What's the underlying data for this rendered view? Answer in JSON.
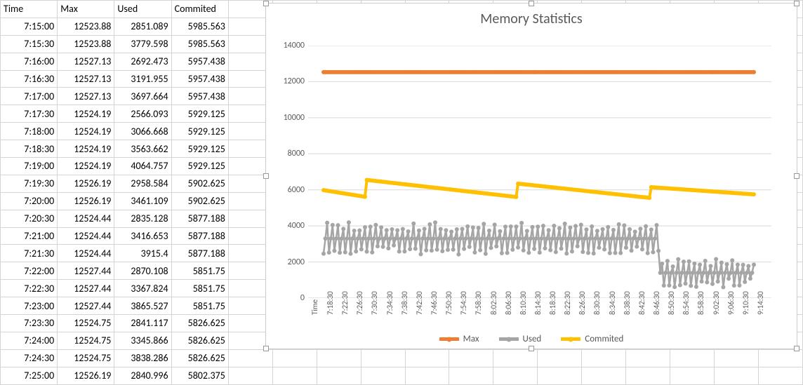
{
  "table": {
    "headers": [
      "Time",
      "Max",
      "Used",
      "Commited"
    ],
    "rows": [
      [
        "7:15:00",
        "12523.88",
        "2851.089",
        "5985.563"
      ],
      [
        "7:15:30",
        "12523.88",
        "3779.598",
        "5985.563"
      ],
      [
        "7:16:00",
        "12527.13",
        "2692.473",
        "5957.438"
      ],
      [
        "7:16:30",
        "12527.13",
        "3191.955",
        "5957.438"
      ],
      [
        "7:17:00",
        "12527.13",
        "3697.664",
        "5957.438"
      ],
      [
        "7:17:30",
        "12524.19",
        "2566.093",
        "5929.125"
      ],
      [
        "7:18:00",
        "12524.19",
        "3066.668",
        "5929.125"
      ],
      [
        "7:18:30",
        "12524.19",
        "3563.662",
        "5929.125"
      ],
      [
        "7:19:00",
        "12524.19",
        "4064.757",
        "5929.125"
      ],
      [
        "7:19:30",
        "12526.19",
        "2958.584",
        "5902.625"
      ],
      [
        "7:20:00",
        "12526.19",
        "3461.109",
        "5902.625"
      ],
      [
        "7:20:30",
        "12524.44",
        "2835.128",
        "5877.188"
      ],
      [
        "7:21:00",
        "12524.44",
        "3416.653",
        "5877.188"
      ],
      [
        "7:21:30",
        "12524.44",
        "3915.4",
        "5877.188"
      ],
      [
        "7:22:00",
        "12527.44",
        "2870.108",
        "5851.75"
      ],
      [
        "7:22:30",
        "12527.44",
        "3367.824",
        "5851.75"
      ],
      [
        "7:23:00",
        "12527.44",
        "3865.527",
        "5851.75"
      ],
      [
        "7:23:30",
        "12524.75",
        "2841.117",
        "5826.625"
      ],
      [
        "7:24:00",
        "12524.75",
        "3345.866",
        "5826.625"
      ],
      [
        "7:24:30",
        "12524.75",
        "3838.286",
        "5826.625"
      ],
      [
        "7:25:00",
        "12526.19",
        "2840.996",
        "5802.375"
      ]
    ]
  },
  "chart": {
    "title": "Memory Statistics",
    "type": "line",
    "background_color": "#ffffff",
    "grid_color": "#d9d9d9",
    "text_color": "#595959",
    "title_fontsize": 20,
    "axis_fontsize": 12,
    "legend_fontsize": 13,
    "ylim": [
      0,
      14000
    ],
    "ytick_step": 2000,
    "yticks": [
      0,
      2000,
      4000,
      6000,
      8000,
      10000,
      12000,
      14000
    ],
    "x_first_label": "Time",
    "xticks": [
      "7:18:30",
      "7:22:30",
      "7:26:30",
      "7:30:30",
      "7:34:30",
      "7:38:30",
      "7:42:30",
      "7:46:30",
      "7:50:30",
      "7:54:30",
      "7:58:30",
      "8:02:30",
      "8:06:30",
      "8:10:30",
      "8:14:30",
      "8:18:30",
      "8:22:30",
      "8:26:30",
      "8:30:30",
      "8:34:30",
      "8:38:30",
      "8:42:30",
      "8:46:30",
      "8:50:30",
      "8:54:30",
      "8:58:30",
      "9:02:30",
      "9:06:30",
      "9:10:30",
      "9:14:30"
    ],
    "n_points": 240,
    "series": {
      "max": {
        "label": "Max",
        "color": "#ed7d31",
        "line_width": 4,
        "marker_size": 3,
        "const_value": 12525
      },
      "used": {
        "label": "Used",
        "color": "#a5a5a5",
        "line_width": 2.5,
        "marker_size": 3,
        "base": 3300,
        "jitter_amp": 900,
        "drop_at_frac": 0.78,
        "drop_to_base": 1400,
        "drop_jitter_amp": 800
      },
      "commited": {
        "label": "Commited",
        "color": "#ffc000",
        "line_width": 4,
        "marker_size": 3,
        "segments": [
          {
            "start_frac": 0.0,
            "start_val": 5985,
            "end_frac": 0.1,
            "end_val": 5600
          },
          {
            "start_frac": 0.1,
            "start_val": 6550,
            "end_frac": 0.45,
            "end_val": 5600
          },
          {
            "start_frac": 0.45,
            "start_val": 6350,
            "end_frac": 0.76,
            "end_val": 5550
          },
          {
            "start_frac": 0.76,
            "start_val": 6150,
            "end_frac": 1.0,
            "end_val": 5750
          }
        ]
      }
    },
    "legend_order": [
      "max",
      "used",
      "commited"
    ]
  }
}
